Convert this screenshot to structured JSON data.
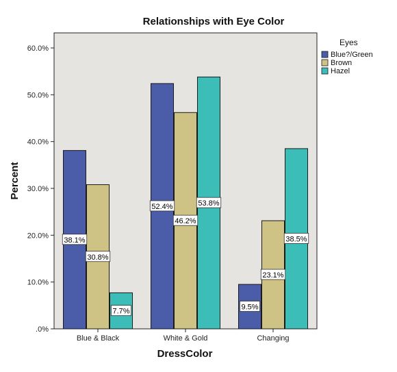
{
  "chart_data": {
    "type": "bar",
    "title": "Relationships with Eye Color",
    "xlabel": "DressColor",
    "ylabel": "Percent",
    "categories": [
      "Blue & Black",
      "White & Gold",
      "Changing"
    ],
    "series": [
      {
        "name": "Blue?/Green",
        "values": [
          38.1,
          52.4,
          9.5
        ],
        "labels": [
          "38.1%",
          "52.4%",
          "9.5%"
        ],
        "color": "#4B5CA8"
      },
      {
        "name": "Brown",
        "values": [
          30.8,
          46.2,
          23.1
        ],
        "labels": [
          "30.8%",
          "46.2%",
          "23.1%"
        ],
        "color": "#CFC285"
      },
      {
        "name": "Hazel",
        "values": [
          7.7,
          53.8,
          38.5
        ],
        "labels": [
          "7.7%",
          "53.8%",
          "38.5%"
        ],
        "color": "#3CBDB7"
      }
    ],
    "ylim": [
      0,
      60
    ],
    "yticks": [
      0,
      10,
      20,
      30,
      40,
      50,
      60
    ],
    "ytick_labels": [
      ".0%",
      "10.0%",
      "20.0%",
      "30.0%",
      "40.0%",
      "50.0%",
      "60.0%"
    ],
    "legend": {
      "title": "Eyes",
      "position": "top-right"
    },
    "grid": false,
    "plot_background": "#E6E4E1"
  }
}
